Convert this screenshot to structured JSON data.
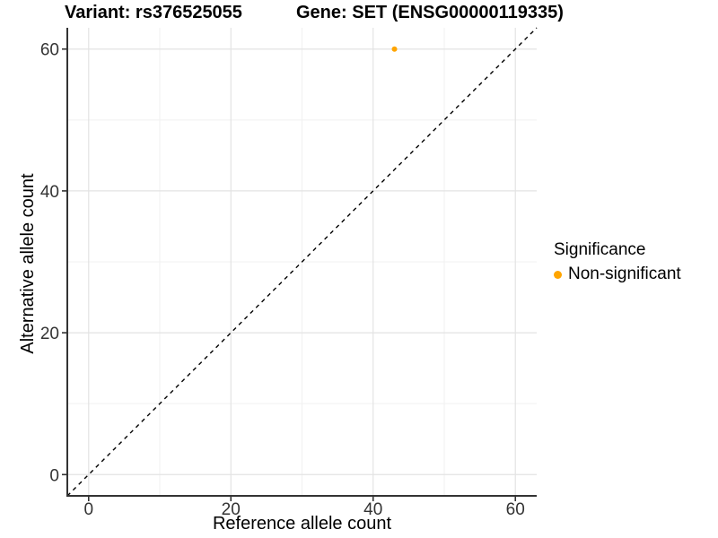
{
  "chart_data": {
    "type": "scatter",
    "title_left": "Variant: rs376525055",
    "title_right": "Gene: SET (ENSG00000119335)",
    "xlabel": "Reference allele count",
    "ylabel": "Alternative allele count",
    "xlim": [
      -3,
      63
    ],
    "ylim": [
      -3,
      63
    ],
    "x_ticks": [
      0,
      20,
      40,
      60
    ],
    "y_ticks": [
      0,
      20,
      40,
      60
    ],
    "x_minor": [
      10,
      30,
      50
    ],
    "y_minor": [
      10,
      30,
      50
    ],
    "grid": true,
    "points": [
      {
        "x": 43,
        "y": 60,
        "series": "Non-significant"
      }
    ],
    "identity_line": {
      "style": "dashed",
      "from": -3,
      "to": 63
    },
    "legend": {
      "position": "right",
      "title": "Significance",
      "items": [
        {
          "label": "Non-significant",
          "color": "#FFA500"
        }
      ]
    },
    "colors": {
      "point": "#FFA500",
      "grid_major": "#E3E3E3",
      "grid_minor": "#F0F0F0",
      "axis": "#333333",
      "diagonal": "#000000",
      "tick_label": "#333333"
    }
  }
}
